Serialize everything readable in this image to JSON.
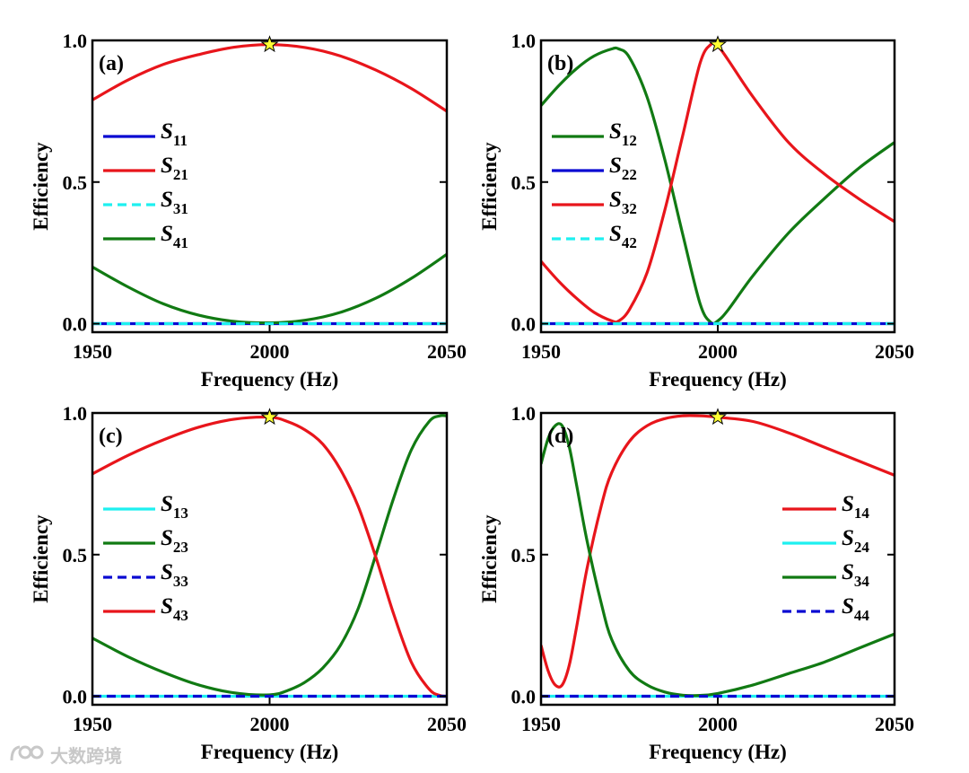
{
  "colors": {
    "red": "#e8151b",
    "green": "#117a13",
    "blue": "#0a0ad2",
    "cyan": "#1ef0f0",
    "star": "#ffff33",
    "axis": "#000000"
  },
  "watermark": {
    "text": "大数跨境",
    "icon": "camera-logo-icon"
  },
  "chart_data": [
    {
      "type": "line",
      "label": "(a)",
      "xlabel": "Frequency (Hz)",
      "ylabel": "Efficiency",
      "xlim": [
        1950,
        2050
      ],
      "ylim": [
        -0.03,
        1.0
      ],
      "xticks": [
        1950,
        2000,
        2050
      ],
      "xtick_labels": [
        "1950",
        "2000",
        "2050"
      ],
      "yticks": [
        0.0,
        0.5,
        1.0
      ],
      "ytick_labels": [
        "0.0",
        "0.5",
        "1.0"
      ],
      "legend_position": "left",
      "x": [
        1950,
        1960,
        1970,
        1980,
        1990,
        2000,
        2010,
        2020,
        2030,
        2040,
        2050
      ],
      "series": [
        {
          "name": "S",
          "sub": "11",
          "color": "blue",
          "dash": "solid",
          "values": [
            0,
            0,
            0,
            0,
            0,
            0,
            0,
            0,
            0,
            0,
            0
          ]
        },
        {
          "name": "S",
          "sub": "21",
          "color": "red",
          "dash": "solid",
          "values": [
            0.79,
            0.86,
            0.915,
            0.95,
            0.976,
            0.985,
            0.975,
            0.945,
            0.895,
            0.83,
            0.75
          ]
        },
        {
          "name": "S",
          "sub": "31",
          "color": "cyan",
          "dash": "dashed",
          "values": [
            0,
            0,
            0,
            0,
            0,
            0,
            0,
            0,
            0,
            0,
            0
          ]
        },
        {
          "name": "S",
          "sub": "41",
          "color": "green",
          "dash": "solid",
          "values": [
            0.2,
            0.13,
            0.07,
            0.03,
            0.008,
            0.003,
            0.012,
            0.04,
            0.09,
            0.16,
            0.245
          ]
        }
      ],
      "star": {
        "x": 2000,
        "y": 0.985
      }
    },
    {
      "type": "line",
      "label": "(b)",
      "xlabel": "Frequency (Hz)",
      "ylabel": "Efficiency",
      "xlim": [
        1950,
        2050
      ],
      "ylim": [
        -0.03,
        1.0
      ],
      "xticks": [
        1950,
        2000,
        2050
      ],
      "xtick_labels": [
        "1950",
        "2000",
        "2050"
      ],
      "yticks": [
        0.0,
        0.5,
        1.0
      ],
      "ytick_labels": [
        "0.0",
        "0.5",
        "1.0"
      ],
      "legend_position": "left",
      "x": [
        1950,
        1955,
        1960,
        1965,
        1970,
        1972,
        1975,
        1980,
        1985,
        1990,
        1995,
        1998,
        2000,
        2003,
        2010,
        2020,
        2030,
        2040,
        2050
      ],
      "series": [
        {
          "name": "S",
          "sub": "12",
          "color": "green",
          "dash": "solid",
          "values": [
            0.77,
            0.84,
            0.9,
            0.945,
            0.97,
            0.97,
            0.94,
            0.8,
            0.58,
            0.32,
            0.07,
            0.005,
            0.01,
            0.05,
            0.17,
            0.32,
            0.44,
            0.55,
            0.64
          ]
        },
        {
          "name": "S",
          "sub": "22",
          "color": "blue",
          "dash": "solid",
          "values": [
            0,
            0,
            0,
            0,
            0,
            0,
            0,
            0,
            0,
            0,
            0,
            0,
            0,
            0,
            0,
            0,
            0,
            0,
            0
          ]
        },
        {
          "name": "S",
          "sub": "32",
          "color": "red",
          "dash": "solid",
          "values": [
            0.22,
            0.15,
            0.09,
            0.04,
            0.01,
            0.01,
            0.05,
            0.18,
            0.4,
            0.66,
            0.92,
            0.985,
            0.98,
            0.93,
            0.8,
            0.64,
            0.53,
            0.44,
            0.36
          ]
        },
        {
          "name": "S",
          "sub": "42",
          "color": "cyan",
          "dash": "dashed",
          "values": [
            0,
            0,
            0,
            0,
            0,
            0,
            0,
            0,
            0,
            0,
            0,
            0,
            0,
            0,
            0,
            0,
            0,
            0,
            0
          ]
        }
      ],
      "star": {
        "x": 2000,
        "y": 0.985
      }
    },
    {
      "type": "line",
      "label": "(c)",
      "xlabel": "Frequency (Hz)",
      "ylabel": "Efficiency",
      "xlim": [
        1950,
        2050
      ],
      "ylim": [
        -0.03,
        1.0
      ],
      "xticks": [
        1950,
        2000,
        2050
      ],
      "xtick_labels": [
        "1950",
        "2000",
        "2050"
      ],
      "yticks": [
        0.0,
        0.5,
        1.0
      ],
      "ytick_labels": [
        "0.0",
        "0.5",
        "1.0"
      ],
      "legend_position": "left",
      "x": [
        1950,
        1960,
        1970,
        1980,
        1990,
        2000,
        2005,
        2010,
        2015,
        2020,
        2025,
        2030,
        2035,
        2040,
        2045,
        2048,
        2050
      ],
      "series": [
        {
          "name": "S",
          "sub": "13",
          "color": "cyan",
          "dash": "solid",
          "values": [
            0,
            0,
            0,
            0,
            0,
            0,
            0,
            0,
            0,
            0,
            0,
            0,
            0,
            0,
            0,
            0,
            0
          ]
        },
        {
          "name": "S",
          "sub": "23",
          "color": "green",
          "dash": "solid",
          "values": [
            0.205,
            0.14,
            0.085,
            0.04,
            0.012,
            0.005,
            0.02,
            0.05,
            0.1,
            0.18,
            0.31,
            0.5,
            0.7,
            0.87,
            0.97,
            0.99,
            0.99
          ]
        },
        {
          "name": "S",
          "sub": "33",
          "color": "blue",
          "dash": "dashed",
          "values": [
            0,
            0,
            0,
            0,
            0,
            0,
            0,
            0,
            0,
            0,
            0,
            0,
            0,
            0,
            0,
            0,
            0
          ]
        },
        {
          "name": "S",
          "sub": "43",
          "color": "red",
          "dash": "solid",
          "values": [
            0.785,
            0.85,
            0.905,
            0.95,
            0.978,
            0.985,
            0.97,
            0.94,
            0.89,
            0.8,
            0.67,
            0.49,
            0.29,
            0.12,
            0.025,
            0.003,
            0.0
          ]
        }
      ],
      "star": {
        "x": 2000,
        "y": 0.985
      }
    },
    {
      "type": "line",
      "label": "(d)",
      "xlabel": "Frequency (Hz)",
      "ylabel": "Efficiency",
      "xlim": [
        1950,
        2050
      ],
      "ylim": [
        -0.03,
        1.0
      ],
      "xticks": [
        1950,
        2000,
        2050
      ],
      "xtick_labels": [
        "1950",
        "2000",
        "2050"
      ],
      "yticks": [
        0.0,
        0.5,
        1.0
      ],
      "ytick_labels": [
        "0.0",
        "0.5",
        "1.0"
      ],
      "legend_position": "right",
      "x": [
        1950,
        1952,
        1954,
        1956,
        1958,
        1960,
        1963,
        1967,
        1970,
        1975,
        1980,
        1985,
        1990,
        1995,
        2000,
        2010,
        2020,
        2030,
        2040,
        2050
      ],
      "series": [
        {
          "name": "S",
          "sub": "14",
          "color": "red",
          "dash": "solid",
          "values": [
            0.18,
            0.09,
            0.04,
            0.04,
            0.11,
            0.24,
            0.45,
            0.67,
            0.79,
            0.9,
            0.955,
            0.98,
            0.99,
            0.99,
            0.985,
            0.97,
            0.93,
            0.88,
            0.83,
            0.78
          ]
        },
        {
          "name": "S",
          "sub": "24",
          "color": "cyan",
          "dash": "solid",
          "values": [
            0,
            0,
            0,
            0,
            0,
            0,
            0,
            0,
            0,
            0,
            0,
            0,
            0,
            0,
            0,
            0,
            0,
            0,
            0,
            0
          ]
        },
        {
          "name": "S",
          "sub": "34",
          "color": "green",
          "dash": "solid",
          "values": [
            0.82,
            0.91,
            0.955,
            0.955,
            0.88,
            0.75,
            0.55,
            0.33,
            0.2,
            0.09,
            0.04,
            0.015,
            0.004,
            0.003,
            0.01,
            0.04,
            0.08,
            0.12,
            0.17,
            0.22
          ]
        },
        {
          "name": "S",
          "sub": "44",
          "color": "blue",
          "dash": "dashed",
          "values": [
            0,
            0,
            0,
            0,
            0,
            0,
            0,
            0,
            0,
            0,
            0,
            0,
            0,
            0,
            0,
            0,
            0,
            0,
            0,
            0
          ]
        }
      ],
      "star": {
        "x": 2000,
        "y": 0.985
      }
    }
  ]
}
